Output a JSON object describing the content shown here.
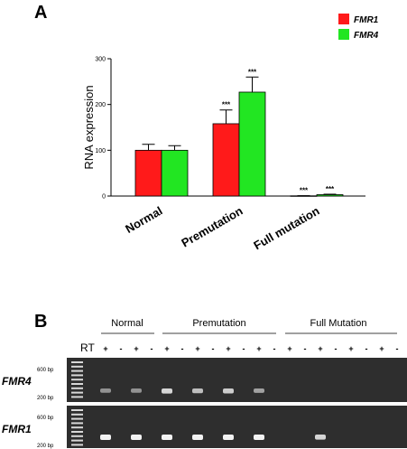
{
  "panel_a": {
    "label": "A"
  },
  "panel_b": {
    "label": "B"
  },
  "colors": {
    "fmr1": "#ff1a1a",
    "fmr4": "#22e622",
    "gel_bg": "#2e2e2e",
    "band": "#f2f2f2"
  },
  "chart_data": {
    "type": "bar",
    "categories": [
      "Normal",
      "Premutation",
      "Full mutation"
    ],
    "series": [
      {
        "name": "FMR1",
        "values": [
          100,
          158,
          0.5
        ],
        "errors": [
          13,
          30,
          0.3
        ],
        "annotations": [
          "",
          "***",
          "***"
        ]
      },
      {
        "name": "FMR4",
        "values": [
          100,
          227,
          3
        ],
        "errors": [
          10,
          33,
          1
        ],
        "annotations": [
          "",
          "***",
          "***"
        ]
      }
    ],
    "ylabel": "RNA expression",
    "ylim": [
      0,
      300
    ],
    "yticks": [
      0,
      100,
      200,
      300
    ],
    "legend_position": "top-right"
  },
  "gel": {
    "rt_label": "RT",
    "groups": [
      "Normal",
      "Premutation",
      "Full Mutation"
    ],
    "lane_signs": [
      "+",
      "-",
      "+",
      "-",
      "+",
      "-",
      "+",
      "-",
      "+",
      "-",
      "+",
      "-",
      "+",
      "-",
      "+",
      "-",
      "+",
      "-",
      "+",
      "-"
    ],
    "ladder_labels": [
      "600 bp",
      "200 bp"
    ],
    "rows": [
      {
        "gene": "FMR4",
        "band_intensity": [
          0.35,
          0,
          0.35,
          0,
          0.8,
          0,
          0.65,
          0,
          0.75,
          0,
          0.45,
          0,
          0,
          0,
          0,
          0,
          0,
          0,
          0,
          0
        ]
      },
      {
        "gene": "FMR1",
        "band_intensity": [
          1,
          0,
          1,
          0,
          1,
          0,
          1,
          0,
          1,
          0,
          1,
          0,
          0,
          0,
          0.8,
          0,
          0,
          0,
          0,
          0
        ]
      }
    ]
  }
}
